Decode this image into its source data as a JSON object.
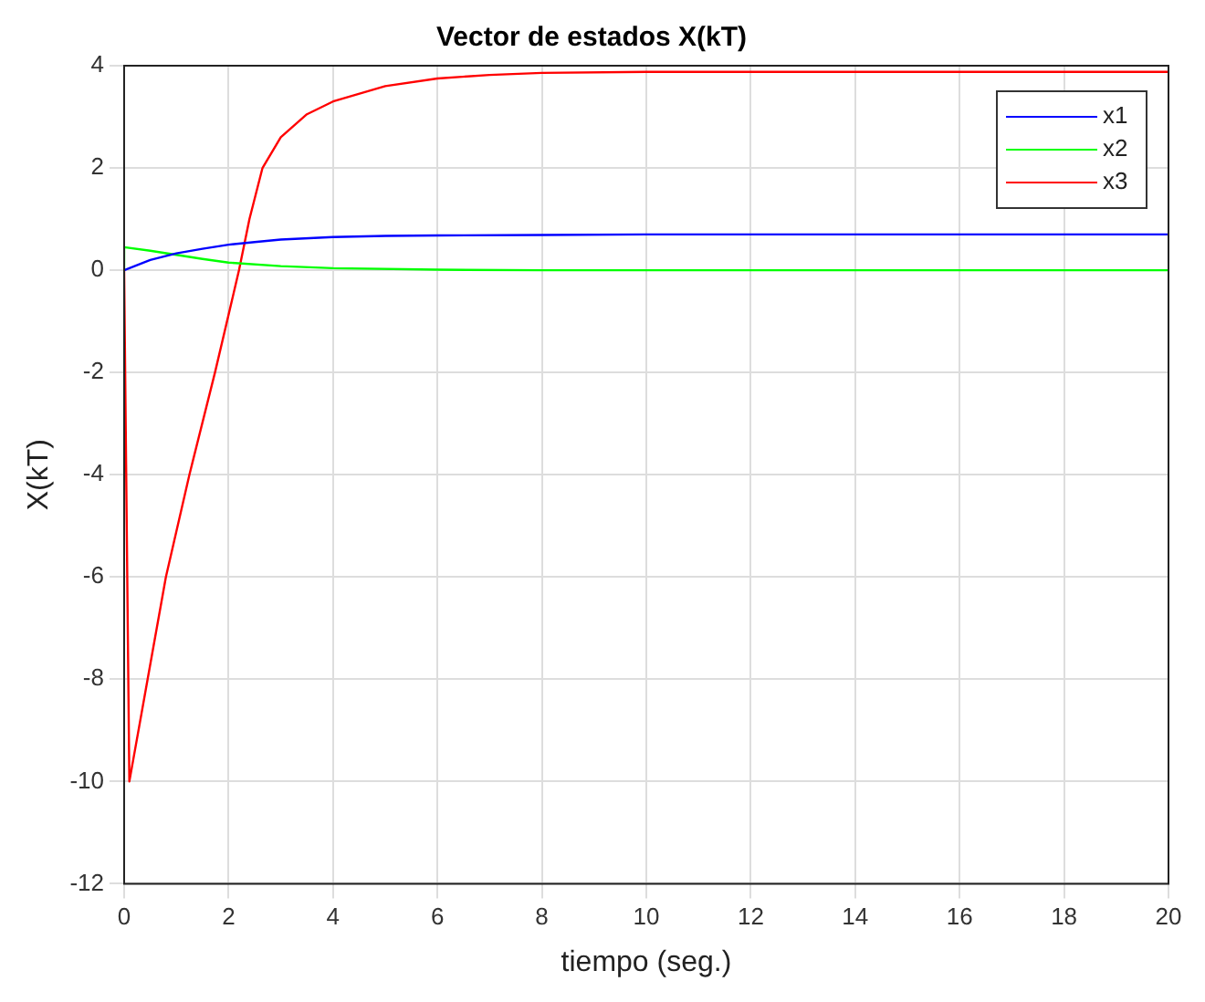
{
  "chart_data": {
    "type": "line",
    "title": "Vector de estados X(kT)",
    "xlabel": "tiempo (seg.)",
    "ylabel": "X(kT)",
    "xlim": [
      0,
      20
    ],
    "ylim": [
      -12,
      4
    ],
    "xticks": [
      0,
      2,
      4,
      6,
      8,
      10,
      12,
      14,
      16,
      18,
      20
    ],
    "yticks": [
      -12,
      -10,
      -8,
      -6,
      -4,
      -2,
      0,
      2,
      4
    ],
    "grid": true,
    "legend": "top right",
    "marker": "none",
    "line_style": "solid",
    "series": [
      {
        "name": "x1",
        "color": "#0000ff",
        "x": [
          0,
          0.5,
          1,
          1.5,
          2,
          2.5,
          3,
          4,
          5,
          6,
          8,
          10,
          20
        ],
        "values": [
          0,
          0.2,
          0.33,
          0.42,
          0.5,
          0.55,
          0.6,
          0.65,
          0.67,
          0.68,
          0.69,
          0.7,
          0.7
        ]
      },
      {
        "name": "x2",
        "color": "#00ff00",
        "x": [
          0,
          0,
          0.5,
          1,
          1.5,
          2,
          3,
          4,
          6,
          8,
          20
        ],
        "values": [
          0,
          0.45,
          0.38,
          0.3,
          0.22,
          0.15,
          0.08,
          0.04,
          0.01,
          0,
          0
        ]
      },
      {
        "name": "x3",
        "color": "#ff0000",
        "x": [
          0,
          0.1,
          0.45,
          0.8,
          1.25,
          1.74,
          2.2,
          2.4,
          2.65,
          3,
          3.5,
          4,
          5,
          6,
          7,
          8,
          10,
          20
        ],
        "values": [
          0,
          -10,
          -8,
          -6,
          -4,
          -2,
          0,
          1,
          2,
          2.6,
          3.05,
          3.3,
          3.6,
          3.75,
          3.82,
          3.86,
          3.88,
          3.88
        ]
      }
    ]
  }
}
